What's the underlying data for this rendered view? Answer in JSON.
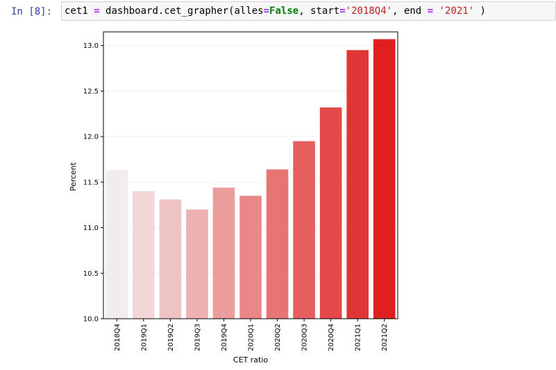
{
  "cell": {
    "prompt": "In [8]:",
    "code": {
      "var": "cet1",
      "op_assign": "=",
      "call": "dashboard.cet_grapher(alles",
      "op_eq1": "=",
      "kw_false": "False",
      "mid1": ", start",
      "op_eq2": "=",
      "str_start": "'2018Q4'",
      "mid2": ", end ",
      "op_eq3": "=",
      "str_end": "'2021'",
      "tail": " )"
    }
  },
  "chart_data": {
    "type": "bar",
    "xlabel": "CET ratio",
    "ylabel": "Percent",
    "ylim": [
      10.0,
      13.15
    ],
    "yticks": [
      "10.0",
      "10.5",
      "11.0",
      "11.5",
      "12.0",
      "12.5",
      "13.0"
    ],
    "grid": true,
    "categories": [
      "2018Q4",
      "2019Q1",
      "2019Q2",
      "2019Q3",
      "2019Q4",
      "2020Q1",
      "2020Q2",
      "2020Q3",
      "2020Q4",
      "2021Q1",
      "2021Q2"
    ],
    "values": [
      11.63,
      11.4,
      11.31,
      11.2,
      11.44,
      11.35,
      11.64,
      11.95,
      12.32,
      12.95,
      13.07
    ],
    "colors": [
      "#f2eded",
      "#f0d6d6",
      "#efc4c4",
      "#edb1b1",
      "#eb9c9c",
      "#e98888",
      "#e87474",
      "#e65f5f",
      "#e44949",
      "#e23535",
      "#e02020"
    ]
  }
}
